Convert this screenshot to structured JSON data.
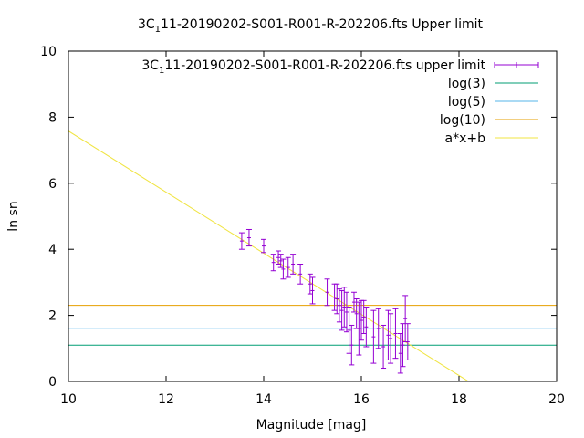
{
  "chart_data": {
    "type": "scatter",
    "title_prefix": "3C",
    "title_subscript": "1",
    "title_suffix": "11-20190202-S001-R001-R-202206.fts Upper limit",
    "xlabel": "Magnitude [mag]",
    "ylabel": "ln sn",
    "xlim": [
      10,
      20
    ],
    "ylim": [
      0,
      10
    ],
    "xticks": [
      10,
      12,
      14,
      16,
      18,
      20
    ],
    "yticks": [
      0,
      2,
      4,
      6,
      8,
      10
    ],
    "grid": false,
    "legend_position": "top-right",
    "series": [
      {
        "name_prefix": "3C",
        "name_subscript": "1",
        "name_suffix": "11-20190202-S001-R001-R-202206.fts upper limit",
        "kind": "errorbar",
        "color": "#9400d3",
        "points": [
          {
            "x": 13.55,
            "y": 4.25,
            "err": 0.25
          },
          {
            "x": 13.7,
            "y": 4.35,
            "err": 0.25
          },
          {
            "x": 14.0,
            "y": 4.1,
            "err": 0.2
          },
          {
            "x": 14.2,
            "y": 3.6,
            "err": 0.25
          },
          {
            "x": 14.3,
            "y": 3.75,
            "err": 0.2
          },
          {
            "x": 14.35,
            "y": 3.65,
            "err": 0.2
          },
          {
            "x": 14.4,
            "y": 3.4,
            "err": 0.3
          },
          {
            "x": 14.5,
            "y": 3.45,
            "err": 0.3
          },
          {
            "x": 14.6,
            "y": 3.55,
            "err": 0.3
          },
          {
            "x": 14.75,
            "y": 3.25,
            "err": 0.3
          },
          {
            "x": 14.95,
            "y": 2.95,
            "err": 0.3
          },
          {
            "x": 15.0,
            "y": 2.75,
            "err": 0.4
          },
          {
            "x": 15.3,
            "y": 2.7,
            "err": 0.4
          },
          {
            "x": 15.45,
            "y": 2.55,
            "err": 0.4
          },
          {
            "x": 15.5,
            "y": 2.5,
            "err": 0.45
          },
          {
            "x": 15.55,
            "y": 2.3,
            "err": 0.5
          },
          {
            "x": 15.6,
            "y": 2.15,
            "err": 0.6
          },
          {
            "x": 15.65,
            "y": 2.25,
            "err": 0.6
          },
          {
            "x": 15.7,
            "y": 2.1,
            "err": 0.6
          },
          {
            "x": 15.75,
            "y": 1.55,
            "err": 0.7
          },
          {
            "x": 15.8,
            "y": 1.1,
            "err": 0.6
          },
          {
            "x": 15.85,
            "y": 2.4,
            "err": 0.3
          },
          {
            "x": 15.9,
            "y": 2.05,
            "err": 0.45
          },
          {
            "x": 15.95,
            "y": 1.6,
            "err": 0.8
          },
          {
            "x": 16.0,
            "y": 1.85,
            "err": 0.6
          },
          {
            "x": 16.05,
            "y": 1.95,
            "err": 0.5
          },
          {
            "x": 16.1,
            "y": 1.65,
            "err": 0.6
          },
          {
            "x": 16.25,
            "y": 1.35,
            "err": 0.8
          },
          {
            "x": 16.35,
            "y": 1.6,
            "err": 0.6
          },
          {
            "x": 16.45,
            "y": 1.05,
            "err": 0.65
          },
          {
            "x": 16.55,
            "y": 1.4,
            "err": 0.75
          },
          {
            "x": 16.6,
            "y": 1.3,
            "err": 0.75
          },
          {
            "x": 16.7,
            "y": 1.45,
            "err": 0.75
          },
          {
            "x": 16.8,
            "y": 0.85,
            "err": 0.6
          },
          {
            "x": 16.85,
            "y": 1.1,
            "err": 0.65
          },
          {
            "x": 16.9,
            "y": 1.9,
            "err": 0.7
          },
          {
            "x": 16.95,
            "y": 1.2,
            "err": 0.55
          }
        ]
      },
      {
        "name": "log(3)",
        "kind": "hline",
        "color": "#009e73",
        "y": 1.0986
      },
      {
        "name": "log(5)",
        "kind": "hline",
        "color": "#56b4e9",
        "y": 1.6094
      },
      {
        "name": "log(10)",
        "kind": "hline",
        "color": "#e69f00",
        "y": 2.3026
      },
      {
        "name": "a*x+b",
        "kind": "line",
        "color": "#f0e442",
        "slope": -0.925,
        "intercept": 16.83
      }
    ]
  }
}
